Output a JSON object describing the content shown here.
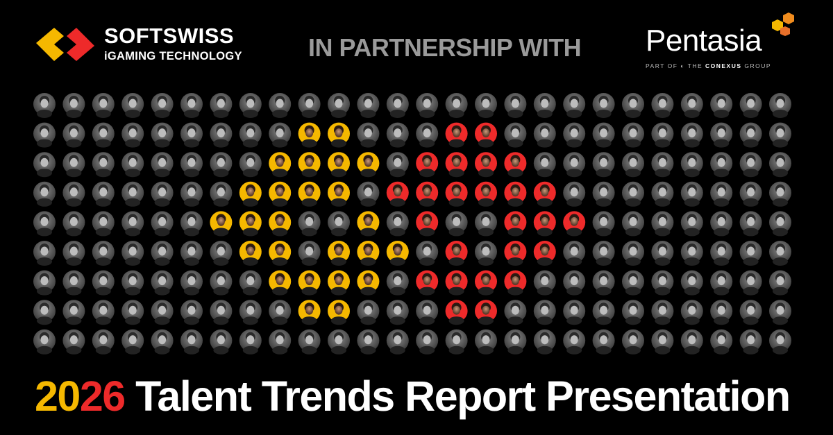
{
  "header": {
    "brand": "SOFTSWISS",
    "tagline": "iGAMING TECHNOLOGY",
    "partnership": "IN PARTNERSHIP WITH",
    "partner": "Pentasia",
    "partner_part_of": "PART OF",
    "partner_group_the": "THE",
    "partner_group_name": "CONEXUS",
    "partner_group_suffix": "GROUP"
  },
  "footer": {
    "year": "2026",
    "title": "Talent Trends Report Presentation"
  }
}
